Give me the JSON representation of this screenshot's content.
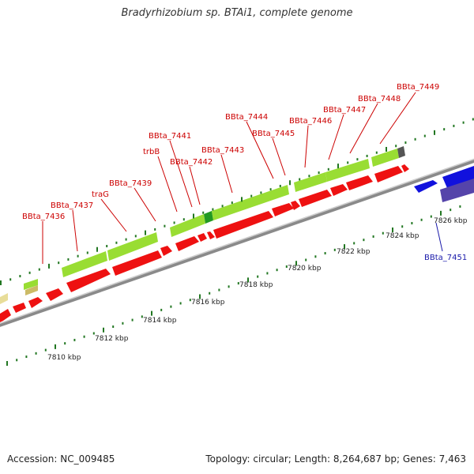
{
  "title": "Bradyrhizobium sp. BTAi1, complete genome",
  "footer": {
    "accession": "Accession: NC_009485",
    "summary": "Topology: circular; Length: 8,264,687 bp; Genes: 7,463"
  },
  "colors": {
    "forward_gene": "#99dd33",
    "reverse_gene": "#ee1111",
    "blue_gene": "#1111dd",
    "purple_gene": "#5544aa",
    "backbone": "#888888",
    "tick": "#227722",
    "label_red": "#cc0000",
    "label_blue": "#1a1aaa"
  },
  "scale_labels": [
    "7810 kbp",
    "7812 kbp",
    "7814 kbp",
    "7816 kbp",
    "7818 kbp",
    "7820 kbp",
    "7822 kbp",
    "7824 kbp",
    "7826 kbp"
  ],
  "gene_labels": [
    {
      "text": "BBta_7436",
      "color": "red"
    },
    {
      "text": "BBta_7437",
      "color": "red"
    },
    {
      "text": "traG",
      "color": "red"
    },
    {
      "text": "BBta_7439",
      "color": "red"
    },
    {
      "text": "trbB",
      "color": "red"
    },
    {
      "text": "BBta_7441",
      "color": "red"
    },
    {
      "text": "BBta_7442",
      "color": "red"
    },
    {
      "text": "BBta_7443",
      "color": "red"
    },
    {
      "text": "BBta_7444",
      "color": "red"
    },
    {
      "text": "BBta_7445",
      "color": "red"
    },
    {
      "text": "BBta_7446",
      "color": "red"
    },
    {
      "text": "BBta_7447",
      "color": "red"
    },
    {
      "text": "BBta_7448",
      "color": "red"
    },
    {
      "text": "BBta_7449",
      "color": "red"
    },
    {
      "text": "BBta_7451",
      "color": "blue"
    }
  ]
}
